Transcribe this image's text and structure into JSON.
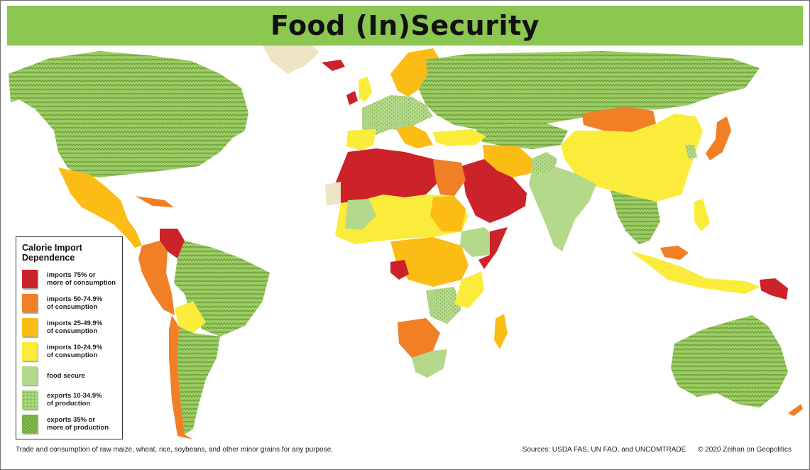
{
  "title": "Food (In)Security",
  "legend": {
    "title": "Calorie Import Dependence",
    "items": [
      {
        "id": "imports-75",
        "label": "imports 75% or\nmore of consumption",
        "color": "#cc2229",
        "pattern": "solid"
      },
      {
        "id": "imports-50",
        "label": "imports 50-74.9%\nof consumption",
        "color": "#f07f26",
        "pattern": "solid"
      },
      {
        "id": "imports-25",
        "label": "imports 25-49.9%\nof consumption",
        "color": "#fbbd15",
        "pattern": "solid"
      },
      {
        "id": "imports-10",
        "label": "imports 10-24.9%\nof consumption",
        "color": "#fbec3b",
        "pattern": "solid"
      },
      {
        "id": "food-secure",
        "label": "food secure",
        "color": "#b4d98a",
        "pattern": "solid"
      },
      {
        "id": "exports-10",
        "label": "exports 10-34.9%\nof production",
        "color": "#a8d67a",
        "pattern": "dots"
      },
      {
        "id": "exports-35",
        "label": "exports 35% or\nmore of production",
        "color": "#8cc751",
        "pattern": "dense"
      }
    ]
  },
  "footer": {
    "note": "Trade and consumption of raw maize, wheat, rice, soybeans, and other minor grains for any purpose.",
    "sources": "Sources: USDA FAS, UN FAO, and UNCOMTRADE",
    "credit": "© 2020 Zeihan on Geopolitics"
  },
  "colors": {
    "imports_75": "#cc2229",
    "imports_50": "#f07f26",
    "imports_25": "#fbbd15",
    "imports_10": "#fbec3b",
    "food_secure": "#b4d98a",
    "exports_10": "#a8d67a",
    "exports_35": "#8cc751",
    "no_data": "#ede4c4",
    "title_bar": "#8cc751"
  }
}
